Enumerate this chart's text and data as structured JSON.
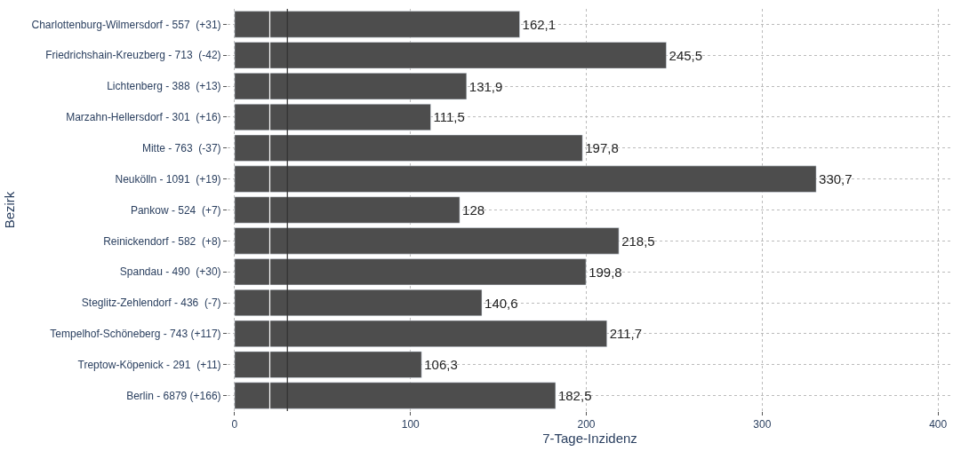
{
  "chart_data": {
    "type": "bar",
    "orientation": "horizontal",
    "xlabel": "7-Tage-Inzidenz",
    "ylabel": "Bezirk",
    "categories": [
      "Charlottenburg-Wilmersdorf - 557  (+31)",
      "Friedrichshain-Kreuzberg - 713  (-42)",
      "Lichtenberg - 388  (+13)",
      "Marzahn-Hellersdorf - 301  (+16)",
      "Mitte - 763  (-37)",
      "Neukölln - 1091  (+19)",
      "Pankow - 524  (+7)",
      "Reinickendorf - 582  (+8)",
      "Spandau - 490  (+30)",
      "Steglitz-Zehlendorf - 436  (-7)",
      "Tempelhof-Schöneberg - 743 (+117)",
      "Treptow-Köpenick - 291  (+11)",
      "Berlin - 6879 (+166)"
    ],
    "values": [
      162.1,
      245.5,
      131.9,
      111.5,
      197.8,
      330.7,
      128,
      218.5,
      199.8,
      140.6,
      211.7,
      106.3,
      182.5
    ],
    "value_labels": [
      "162,1",
      "245,5",
      "131,9",
      "111,5",
      "197,8",
      "330,7",
      "128",
      "218,5",
      "199,8",
      "140,6",
      "211,7",
      "106,3",
      "182,5"
    ],
    "color": "#4d4d4d",
    "xlim": [
      -4,
      408
    ],
    "xticks": [
      0,
      100,
      200,
      300,
      400
    ],
    "ref_lines": [
      {
        "axis": "x",
        "value": 20,
        "color": "#ffffff"
      },
      {
        "axis": "x",
        "value": 30,
        "color": "#333333"
      }
    ],
    "grid": true
  }
}
